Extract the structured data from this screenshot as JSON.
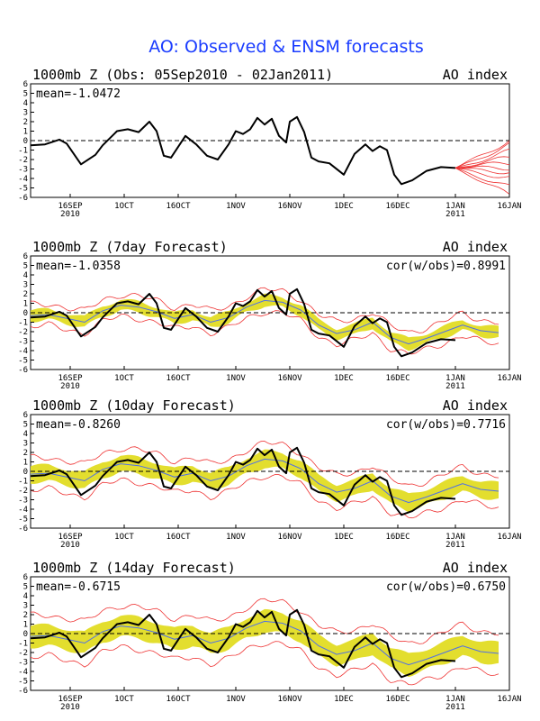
{
  "figure": {
    "title": "AO: Observed & ENSM forecasts",
    "colors": {
      "title": "#1a3cff",
      "observed": "#000000",
      "ens_mean": "#4f6fe8",
      "spread_fill": "#e3de2e",
      "ens_members": "#ee3333",
      "zero_line": "#000000"
    }
  },
  "chart_data": [
    {
      "type": "line",
      "title_left": "1000mb Z (Obs: 05Sep2010 - 02Jan2011)",
      "title_right": "AO index",
      "mean_label": "mean=-1.0472",
      "cor_label": "",
      "ylim": [
        -6,
        6
      ],
      "yticks": [
        "6",
        "5",
        "4",
        "3",
        "2",
        "1",
        "0",
        "-1",
        "-2",
        "-3",
        "-4",
        "-5",
        "-6"
      ],
      "xlim": [
        0,
        133
      ],
      "xticks": [
        {
          "day": 11,
          "label": "16SEP",
          "sub": "2010"
        },
        {
          "day": 26,
          "label": "1OCT",
          "sub": ""
        },
        {
          "day": 41,
          "label": "16OCT",
          "sub": ""
        },
        {
          "day": 57,
          "label": "1NOV",
          "sub": ""
        },
        {
          "day": 72,
          "label": "16NOV",
          "sub": ""
        },
        {
          "day": 87,
          "label": "1DEC",
          "sub": ""
        },
        {
          "day": 102,
          "label": "16DEC",
          "sub": ""
        },
        {
          "day": 118,
          "label": "1JAN",
          "sub": "2011"
        },
        {
          "day": 133,
          "label": "16JAN",
          "sub": ""
        }
      ],
      "zero_line": "dashed",
      "show_spread": false,
      "show_ens_mean": false,
      "show_member_fan": true
    },
    {
      "type": "line",
      "title_left": "1000mb Z (7day Forecast)",
      "title_right": "AO index",
      "mean_label": "mean=-1.0358",
      "cor_label": "cor(w/obs)=0.8991",
      "ylim": [
        -6,
        6
      ],
      "yticks": [
        "6",
        "5",
        "4",
        "3",
        "2",
        "1",
        "0",
        "-1",
        "-2",
        "-3",
        "-4",
        "-5",
        "-6"
      ],
      "xlim": [
        0,
        133
      ],
      "xticks": [
        {
          "day": 11,
          "label": "16SEP",
          "sub": "2010"
        },
        {
          "day": 26,
          "label": "1OCT",
          "sub": ""
        },
        {
          "day": 41,
          "label": "16OCT",
          "sub": ""
        },
        {
          "day": 57,
          "label": "1NOV",
          "sub": ""
        },
        {
          "day": 72,
          "label": "16NOV",
          "sub": ""
        },
        {
          "day": 87,
          "label": "1DEC",
          "sub": ""
        },
        {
          "day": 102,
          "label": "16DEC",
          "sub": ""
        },
        {
          "day": 118,
          "label": "1JAN",
          "sub": "2011"
        },
        {
          "day": 133,
          "label": "16JAN",
          "sub": ""
        }
      ],
      "zero_line": "dashed",
      "show_spread": true,
      "show_ens_mean": true,
      "show_member_fan": false,
      "spread_halfwidth": 0.55,
      "outer_halfwidth": 1.15
    },
    {
      "type": "line",
      "title_left": "1000mb Z (10day Forecast)",
      "title_right": "AO index",
      "mean_label": "mean=-0.8260",
      "cor_label": "cor(w/obs)=0.7716",
      "ylim": [
        -6,
        6
      ],
      "yticks": [
        "6",
        "5",
        "4",
        "3",
        "2",
        "1",
        "0",
        "-1",
        "-2",
        "-3",
        "-4",
        "-5",
        "-6"
      ],
      "xlim": [
        0,
        133
      ],
      "xticks": [
        {
          "day": 11,
          "label": "16SEP",
          "sub": "2010"
        },
        {
          "day": 26,
          "label": "1OCT",
          "sub": ""
        },
        {
          "day": 41,
          "label": "16OCT",
          "sub": ""
        },
        {
          "day": 57,
          "label": "1NOV",
          "sub": ""
        },
        {
          "day": 72,
          "label": "16NOV",
          "sub": ""
        },
        {
          "day": 87,
          "label": "1DEC",
          "sub": ""
        },
        {
          "day": 102,
          "label": "16DEC",
          "sub": ""
        },
        {
          "day": 118,
          "label": "1JAN",
          "sub": "2011"
        },
        {
          "day": 133,
          "label": "16JAN",
          "sub": ""
        }
      ],
      "zero_line": "dashed",
      "show_spread": true,
      "show_ens_mean": true,
      "show_member_fan": false,
      "spread_halfwidth": 0.85,
      "outer_halfwidth": 1.7
    },
    {
      "type": "line",
      "title_left": "1000mb Z (14day Forecast)",
      "title_right": "AO index",
      "mean_label": "mean=-0.6715",
      "cor_label": "cor(w/obs)=0.6750",
      "ylim": [
        -6,
        6
      ],
      "yticks": [
        "6",
        "5",
        "4",
        "3",
        "2",
        "1",
        "0",
        "-1",
        "-2",
        "-3",
        "-4",
        "-5",
        "-6"
      ],
      "xlim": [
        0,
        133
      ],
      "xticks": [
        {
          "day": 11,
          "label": "16SEP",
          "sub": "2010"
        },
        {
          "day": 26,
          "label": "1OCT",
          "sub": ""
        },
        {
          "day": 41,
          "label": "16OCT",
          "sub": ""
        },
        {
          "day": 57,
          "label": "1NOV",
          "sub": ""
        },
        {
          "day": 72,
          "label": "16NOV",
          "sub": ""
        },
        {
          "day": 87,
          "label": "1DEC",
          "sub": ""
        },
        {
          "day": 102,
          "label": "16DEC",
          "sub": ""
        },
        {
          "day": 118,
          "label": "1JAN",
          "sub": "2011"
        },
        {
          "day": 133,
          "label": "16JAN",
          "sub": ""
        }
      ],
      "zero_line": "dashed",
      "show_spread": true,
      "show_ens_mean": true,
      "show_member_fan": false,
      "spread_halfwidth": 1.1,
      "outer_halfwidth": 2.2
    }
  ],
  "series": {
    "observed": {
      "x": [
        0,
        4,
        8,
        10,
        14,
        18,
        20,
        24,
        27,
        30,
        33,
        35,
        37,
        39,
        43,
        46,
        49,
        52,
        55,
        57,
        59,
        61,
        63,
        65,
        67,
        69,
        71,
        72,
        74,
        76,
        78,
        80,
        83,
        87,
        90,
        93,
        95,
        97,
        99,
        101,
        103,
        106,
        110,
        114,
        118
      ],
      "y": [
        -0.5,
        -0.4,
        0.1,
        -0.3,
        -2.5,
        -1.5,
        -0.5,
        1.0,
        1.2,
        0.9,
        2.0,
        1.0,
        -1.6,
        -1.8,
        0.5,
        -0.4,
        -1.6,
        -2.0,
        -0.4,
        1.0,
        0.7,
        1.2,
        2.4,
        1.7,
        2.3,
        0.5,
        -0.2,
        2.0,
        2.5,
        0.9,
        -1.8,
        -2.2,
        -2.4,
        -3.6,
        -1.4,
        -0.4,
        -1.1,
        -0.6,
        -1.0,
        -3.6,
        -4.6,
        -4.2,
        -3.2,
        -2.8,
        -2.9
      ]
    },
    "ensemble_mean": {
      "x": [
        0,
        5,
        10,
        15,
        20,
        25,
        30,
        35,
        40,
        45,
        50,
        55,
        60,
        65,
        70,
        75,
        80,
        85,
        90,
        95,
        100,
        105,
        110,
        115,
        120,
        125,
        130
      ],
      "y": [
        -0.3,
        -0.2,
        -0.6,
        -1.0,
        0.2,
        0.8,
        0.6,
        0.1,
        -0.6,
        -0.2,
        -1.0,
        -0.5,
        0.6,
        1.3,
        1.1,
        0.3,
        -1.3,
        -2.2,
        -1.8,
        -1.0,
        -2.6,
        -3.3,
        -2.7,
        -2.0,
        -1.3,
        -1.9,
        -2.1
      ]
    },
    "ens_member_fan": {
      "start_day": 118,
      "start_value": -2.9,
      "end_day": 133,
      "end_values": [
        0.0,
        -0.5,
        -1.2,
        -1.8,
        -2.3,
        -2.8,
        -3.3,
        -4.0,
        -5.0,
        -5.8
      ]
    }
  }
}
